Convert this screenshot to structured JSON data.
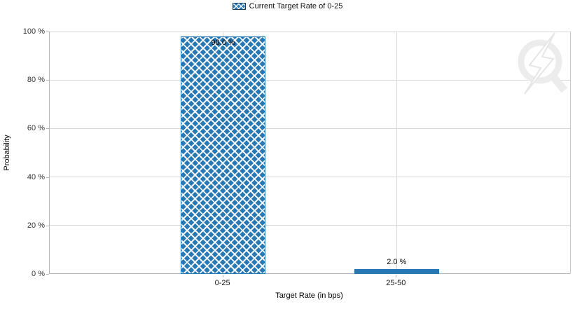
{
  "legend": {
    "label": "Current Target Rate of 0-25",
    "swatch_style": "blue-crosshatch"
  },
  "watermark": {
    "name": "q-lightning-logo"
  },
  "colors": {
    "bar_blue": "#2878b4",
    "legend_swatch_border": "#1c3c5e",
    "gridline": "#d8d8d8",
    "axis_line": "#b5b5b5",
    "label_text": "#000000",
    "tick_text": "#333333",
    "watermark_gray": "#ececec"
  },
  "chart_data": {
    "type": "bar",
    "categories": [
      "0-25",
      "25-50"
    ],
    "values": [
      98.0,
      2.0
    ],
    "value_labels": [
      "98.0 %",
      "2.0 %"
    ],
    "series": [
      {
        "name": "Current Target Rate of 0-25",
        "values": [
          98.0,
          2.0
        ]
      }
    ],
    "bar_styles": [
      "crosshatch",
      "solid"
    ],
    "title": "",
    "xlabel": "Target Rate (in bps)",
    "ylabel": "Probability",
    "ylim": [
      0,
      100
    ],
    "yticks": [
      0,
      20,
      40,
      60,
      80,
      100
    ],
    "ytick_labels": [
      "0 %",
      "20 %",
      "40 %",
      "60 %",
      "80 %",
      "100 %"
    ],
    "grid": "horizontal lines every 20%, vertical line at each category",
    "legend_position": "top-center"
  }
}
